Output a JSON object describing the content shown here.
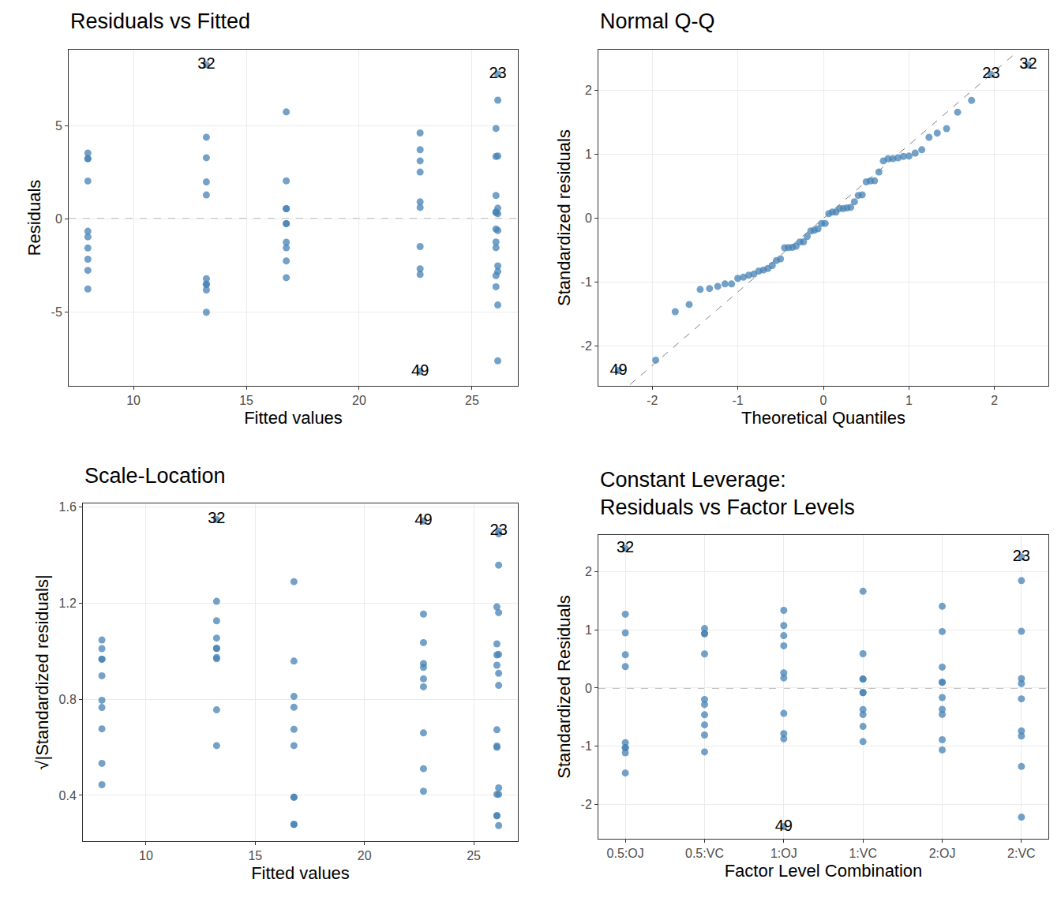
{
  "chart_data": [
    {
      "type": "scatter",
      "title": "Residuals vs Fitted",
      "x_label": "Fitted values",
      "y_label": "Residuals",
      "color": "#4682B4",
      "grid": true,
      "hline": 0,
      "xlim": [
        7.13,
        27.03
      ],
      "xticks": [
        10,
        15,
        20,
        25
      ],
      "ylim": [
        -8.98,
        9.07
      ],
      "yticks": [
        -5,
        0,
        5
      ],
      "x": [
        7.98,
        7.98,
        7.98,
        7.98,
        7.98,
        7.98,
        7.98,
        7.98,
        7.98,
        7.98,
        16.77,
        16.77,
        16.77,
        16.77,
        16.77,
        16.77,
        16.77,
        16.77,
        16.77,
        16.77,
        26.14,
        26.14,
        26.14,
        26.14,
        26.14,
        26.14,
        26.14,
        26.14,
        26.14,
        26.14,
        13.23,
        13.23,
        13.23,
        13.23,
        13.23,
        13.23,
        13.23,
        13.23,
        13.23,
        13.23,
        22.7,
        22.7,
        22.7,
        22.7,
        22.7,
        22.7,
        22.7,
        22.7,
        22.7,
        22.7,
        26.06,
        26.06,
        26.06,
        26.06,
        26.06,
        26.06,
        26.06,
        26.06,
        26.06,
        26.06
      ],
      "y": [
        -3.78,
        3.52,
        -0.68,
        -2.18,
        -1.58,
        2.02,
        3.22,
        3.22,
        -2.78,
        -0.98,
        -0.27,
        -0.27,
        -1.57,
        0.53,
        5.73,
        0.53,
        -3.17,
        -2.27,
        2.03,
        -1.27,
        -2.54,
        -7.64,
        7.76,
        -0.64,
        0.26,
        6.36,
        0.56,
        -4.64,
        -2.84,
        3.36,
        1.97,
        8.27,
        4.37,
        -3.53,
        1.27,
        -3.23,
        -5.03,
        -3.83,
        3.27,
        -3.53,
        -3.0,
        0.6,
        0.9,
        3.7,
        -2.7,
        2.5,
        3.1,
        -1.5,
        -8.2,
        4.6,
        -0.56,
        0.34,
        -3.66,
        -1.56,
        -1.26,
        4.84,
        0.34,
        1.24,
        3.34,
        -3.06
      ],
      "point_labels": [
        null,
        null,
        null,
        null,
        null,
        null,
        null,
        null,
        null,
        null,
        null,
        null,
        null,
        null,
        null,
        null,
        null,
        null,
        null,
        null,
        null,
        null,
        "23",
        null,
        null,
        null,
        null,
        null,
        null,
        null,
        null,
        "32",
        null,
        null,
        null,
        null,
        null,
        null,
        null,
        null,
        null,
        null,
        null,
        null,
        null,
        null,
        null,
        null,
        "49",
        null,
        null,
        null,
        null,
        null,
        null,
        null,
        null,
        null,
        null,
        null
      ]
    },
    {
      "type": "scatter",
      "title": "Normal Q-Q",
      "x_label": "Theoretical Quantiles",
      "y_label": "Standardized residuals",
      "color": "#4682B4",
      "grid": true,
      "reference_line": {
        "x": [
          -2.26,
          2.26
        ],
        "y": [
          -2.6,
          2.6
        ]
      },
      "xlim": [
        -2.63,
        2.63
      ],
      "xticks": [
        -2,
        -1,
        0,
        1,
        2
      ],
      "ylim": [
        -2.62,
        2.64
      ],
      "yticks": [
        -2,
        -1,
        0,
        1,
        2
      ],
      "x": [
        -2.394,
        -1.96,
        -1.732,
        -1.569,
        -1.44,
        -1.331,
        -1.235,
        -1.15,
        -1.073,
        -1.001,
        -0.935,
        -0.872,
        -0.812,
        -0.755,
        -0.701,
        -0.649,
        -0.598,
        -0.549,
        -0.501,
        -0.454,
        -0.408,
        -0.363,
        -0.319,
        -0.275,
        -0.232,
        -0.189,
        -0.147,
        -0.105,
        -0.063,
        -0.021,
        0.021,
        0.063,
        0.105,
        0.147,
        0.189,
        0.232,
        0.275,
        0.319,
        0.363,
        0.408,
        0.454,
        0.501,
        0.549,
        0.598,
        0.649,
        0.701,
        0.755,
        0.812,
        0.872,
        0.935,
        1.001,
        1.073,
        1.15,
        1.235,
        1.331,
        1.44,
        1.569,
        1.732,
        1.96,
        2.394
      ],
      "y": [
        -2.38,
        -2.218,
        -1.46,
        -1.347,
        -1.112,
        -1.097,
        -1.063,
        -1.025,
        -1.025,
        -0.938,
        -0.92,
        -0.888,
        -0.871,
        -0.824,
        -0.807,
        -0.784,
        -0.737,
        -0.659,
        -0.633,
        -0.459,
        -0.456,
        -0.453,
        -0.435,
        -0.369,
        -0.366,
        -0.284,
        -0.197,
        -0.186,
        -0.163,
        -0.078,
        -0.078,
        0.075,
        0.099,
        0.099,
        0.154,
        0.154,
        0.163,
        0.174,
        0.261,
        0.36,
        0.369,
        0.572,
        0.586,
        0.589,
        0.726,
        0.9,
        0.935,
        0.935,
        0.949,
        0.97,
        0.975,
        1.022,
        1.074,
        1.269,
        1.335,
        1.405,
        1.663,
        1.846,
        2.253,
        2.401
      ],
      "point_labels": [
        "49",
        null,
        null,
        null,
        null,
        null,
        null,
        null,
        null,
        null,
        null,
        null,
        null,
        null,
        null,
        null,
        null,
        null,
        null,
        null,
        null,
        null,
        null,
        null,
        null,
        null,
        null,
        null,
        null,
        null,
        null,
        null,
        null,
        null,
        null,
        null,
        null,
        null,
        null,
        null,
        null,
        null,
        null,
        null,
        null,
        null,
        null,
        null,
        null,
        null,
        null,
        null,
        null,
        null,
        null,
        null,
        null,
        null,
        "23",
        "32"
      ]
    },
    {
      "type": "scatter",
      "title": "Scale-Location",
      "x_label": "Fitted values",
      "y_label": "√|Standardized residuals|",
      "color": "#4682B4",
      "grid": true,
      "xlim": [
        7.11,
        27.02
      ],
      "xticks": [
        10,
        15,
        20,
        25
      ],
      "ylim": [
        0.209,
        1.616
      ],
      "yticks": [
        0.4,
        0.8,
        1.2,
        1.6
      ],
      "x": [
        7.98,
        7.98,
        7.98,
        7.98,
        7.98,
        7.98,
        7.98,
        7.98,
        7.98,
        7.98,
        16.77,
        16.77,
        16.77,
        16.77,
        16.77,
        16.77,
        16.77,
        16.77,
        16.77,
        16.77,
        26.14,
        26.14,
        26.14,
        26.14,
        26.14,
        26.14,
        26.14,
        26.14,
        26.14,
        26.14,
        13.23,
        13.23,
        13.23,
        13.23,
        13.23,
        13.23,
        13.23,
        13.23,
        13.23,
        13.23,
        22.7,
        22.7,
        22.7,
        22.7,
        22.7,
        22.7,
        22.7,
        22.7,
        22.7,
        22.7,
        26.06,
        26.06,
        26.06,
        26.06,
        26.06,
        26.06,
        26.06,
        26.06,
        26.06,
        26.06
      ],
      "y": [
        1.047,
        1.011,
        0.444,
        0.796,
        0.677,
        0.766,
        0.967,
        0.967,
        0.898,
        0.533,
        0.279,
        0.279,
        0.675,
        0.392,
        1.29,
        0.392,
        0.959,
        0.812,
        0.767,
        0.607,
        0.858,
        1.489,
        1.501,
        0.431,
        0.274,
        1.359,
        0.404,
        1.161,
        0.908,
        0.987,
        0.756,
        1.549,
        1.127,
        1.012,
        0.607,
        0.969,
        1.208,
        1.055,
        0.974,
        1.012,
        0.933,
        0.417,
        0.511,
        1.036,
        0.885,
        0.852,
        0.949,
        0.66,
        1.543,
        1.155,
        0.404,
        0.315,
        1.031,
        0.673,
        0.605,
        1.185,
        0.315,
        0.6,
        0.985,
        0.942
      ],
      "point_labels": [
        null,
        null,
        null,
        null,
        null,
        null,
        null,
        null,
        null,
        null,
        null,
        null,
        null,
        null,
        null,
        null,
        null,
        null,
        null,
        null,
        null,
        null,
        "23",
        null,
        null,
        null,
        null,
        null,
        null,
        null,
        null,
        "32",
        null,
        null,
        null,
        null,
        null,
        null,
        null,
        null,
        null,
        null,
        null,
        null,
        null,
        null,
        null,
        null,
        "49",
        null,
        null,
        null,
        null,
        null,
        null,
        null,
        null,
        null,
        null,
        null
      ]
    },
    {
      "type": "scatter",
      "title": "Constant Leverage:\nResiduals vs Factor Levels",
      "x_label": "Factor Level Combination",
      "y_label": "Standardized Residuals",
      "color": "#4682B4",
      "grid": true,
      "hline": 0,
      "categories": [
        "0.5:OJ",
        "0.5:VC",
        "1:OJ",
        "1:VC",
        "2:OJ",
        "2:VC"
      ],
      "ylim": [
        -2.59,
        2.63
      ],
      "yticks": [
        -2,
        -1,
        0,
        1,
        2
      ],
      "x": [
        "0.5:VC",
        "0.5:VC",
        "0.5:VC",
        "0.5:VC",
        "0.5:VC",
        "0.5:VC",
        "0.5:VC",
        "0.5:VC",
        "0.5:VC",
        "0.5:VC",
        "1:VC",
        "1:VC",
        "1:VC",
        "1:VC",
        "1:VC",
        "1:VC",
        "1:VC",
        "1:VC",
        "1:VC",
        "1:VC",
        "2:VC",
        "2:VC",
        "2:VC",
        "2:VC",
        "2:VC",
        "2:VC",
        "2:VC",
        "2:VC",
        "2:VC",
        "2:VC",
        "0.5:OJ",
        "0.5:OJ",
        "0.5:OJ",
        "0.5:OJ",
        "0.5:OJ",
        "0.5:OJ",
        "0.5:OJ",
        "0.5:OJ",
        "0.5:OJ",
        "0.5:OJ",
        "1:OJ",
        "1:OJ",
        "1:OJ",
        "1:OJ",
        "1:OJ",
        "1:OJ",
        "1:OJ",
        "1:OJ",
        "1:OJ",
        "1:OJ",
        "2:OJ",
        "2:OJ",
        "2:OJ",
        "2:OJ",
        "2:OJ",
        "2:OJ",
        "2:OJ",
        "2:OJ",
        "2:OJ",
        "2:OJ"
      ],
      "y": [
        -1.097,
        1.022,
        -0.197,
        -0.633,
        -0.459,
        0.586,
        0.935,
        0.935,
        -0.807,
        -0.284,
        -0.078,
        -0.078,
        -0.456,
        0.154,
        1.663,
        0.154,
        -0.92,
        -0.659,
        0.589,
        -0.369,
        -0.737,
        -2.218,
        2.253,
        -0.186,
        0.075,
        1.846,
        0.163,
        -1.347,
        -0.824,
        0.975,
        0.572,
        2.401,
        1.269,
        -1.025,
        0.369,
        -0.938,
        -1.46,
        -1.112,
        0.949,
        -1.025,
        -0.871,
        0.174,
        0.261,
        1.074,
        -0.784,
        0.726,
        0.9,
        -0.435,
        -2.38,
        1.335,
        -0.163,
        0.099,
        -1.063,
        -0.453,
        -0.366,
        1.405,
        0.099,
        0.36,
        0.97,
        -0.888
      ],
      "point_labels": [
        null,
        null,
        null,
        null,
        null,
        null,
        null,
        null,
        null,
        null,
        null,
        null,
        null,
        null,
        null,
        null,
        null,
        null,
        null,
        null,
        null,
        null,
        "23",
        null,
        null,
        null,
        null,
        null,
        null,
        null,
        null,
        "32",
        null,
        null,
        null,
        null,
        null,
        null,
        null,
        null,
        null,
        null,
        null,
        null,
        null,
        null,
        null,
        null,
        "49",
        null,
        null,
        null,
        null,
        null,
        null,
        null,
        null,
        null,
        null,
        null
      ]
    }
  ]
}
